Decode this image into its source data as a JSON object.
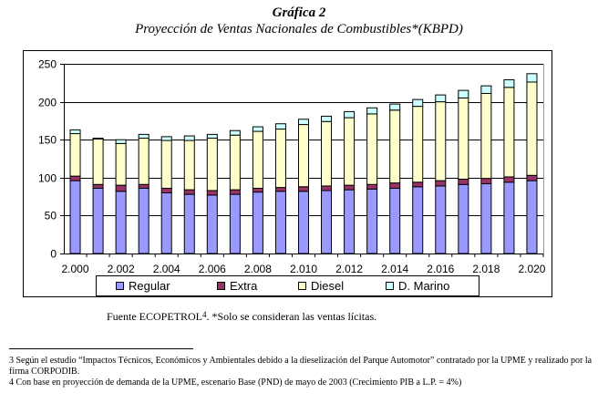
{
  "page": {
    "source_prefix": "Fuente ECOPETROL",
    "source_sup": "4",
    "source_suffix": ". *Solo se consideran las ventas lícitas.",
    "footnotes": [
      "3 Según el estudio “Impactos Técnicos, Económicos y Ambientales debido a la dieselización del Parque Automotor” contratado por la UPME y realizado por la firma CORPODIB.",
      "4 Con base en proyección de demanda de la UPME, escenario Base (PND) de mayo de 2003 (Crecimiento PIB a L.P. = 4%)"
    ]
  },
  "chart_data": {
    "type": "bar",
    "stacked": true,
    "title": "Gráfica 2",
    "subtitle": "Proyección de Ventas Nacionales de Combustibles*(KBPD)",
    "xlabel": "",
    "ylabel": "",
    "ylim": [
      0,
      250
    ],
    "yticks": [
      0,
      50,
      100,
      150,
      200,
      250
    ],
    "grid": true,
    "legend_position": "bottom",
    "categories": [
      "2.000",
      "2.001",
      "2.002",
      "2.003",
      "2.004",
      "2.005",
      "2.006",
      "2.007",
      "2.008",
      "2.009",
      "2.010",
      "2.011",
      "2.012",
      "2.013",
      "2.014",
      "2.015",
      "2.016",
      "2.017",
      "2.018",
      "2.019",
      "2.020"
    ],
    "x_tick_labels": [
      "2.000",
      "2.002",
      "2.004",
      "2.006",
      "2.008",
      "2.010",
      "2.012",
      "2.014",
      "2.016",
      "2.018",
      "2.020"
    ],
    "series": [
      {
        "name": "Regular",
        "color": "#9999ff",
        "values": [
          96,
          86,
          82,
          86,
          80,
          78,
          77,
          78,
          81,
          82,
          82,
          83,
          84,
          85,
          86,
          88,
          89,
          91,
          92,
          94,
          96
        ]
      },
      {
        "name": "Extra",
        "color": "#993366",
        "values": [
          6,
          5,
          8,
          5,
          6,
          6,
          6,
          6,
          5,
          5,
          6,
          6,
          6,
          6,
          7,
          6,
          7,
          7,
          7,
          7,
          7
        ]
      },
      {
        "name": "Diesel",
        "color": "#ffffcc",
        "values": [
          56,
          60,
          55,
          61,
          63,
          65,
          69,
          72,
          75,
          77,
          82,
          85,
          89,
          93,
          96,
          100,
          104,
          107,
          112,
          118,
          123
        ]
      },
      {
        "name": "D. Marino",
        "color": "#ccffff",
        "values": [
          5,
          1,
          5,
          5,
          5,
          6,
          5,
          6,
          6,
          7,
          7,
          7,
          8,
          8,
          8,
          9,
          9,
          10,
          10,
          10,
          11
        ]
      }
    ]
  }
}
